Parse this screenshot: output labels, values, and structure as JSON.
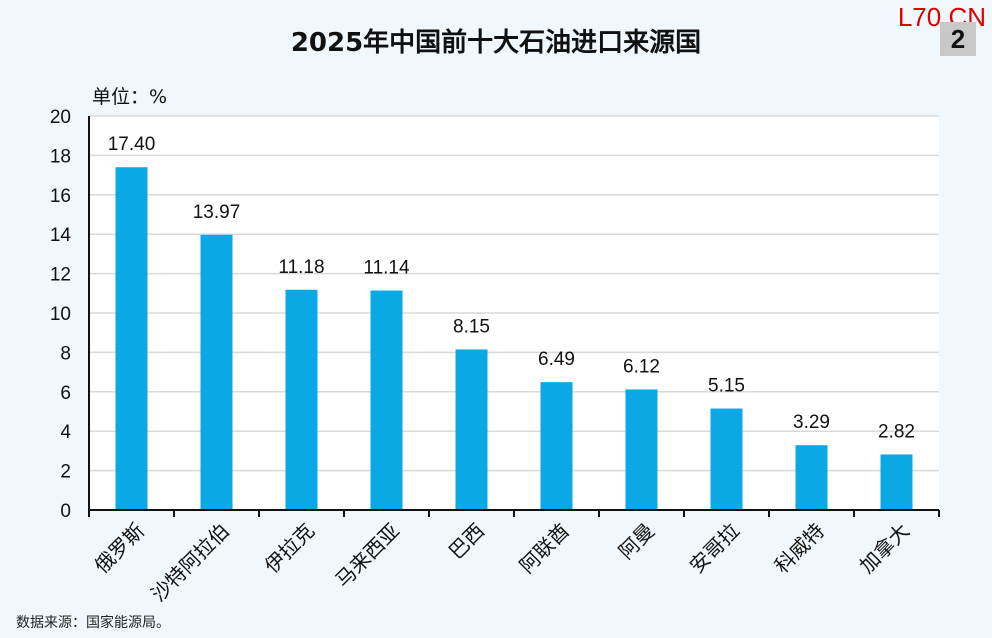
{
  "header": {
    "watermark": "L70.CN",
    "page_badge": "2"
  },
  "footer": {
    "source": "数据来源：国家能源局。"
  },
  "colors": {
    "bar": "#0aa8e4",
    "plot_bg": "#ffffff",
    "page_bg": "#f1f8fd",
    "grid": "#d9d9d9"
  },
  "chart_data": {
    "type": "bar",
    "title": "2025年中国前十大石油进口来源国",
    "unit_label": "单位：%",
    "xlabel": "",
    "ylabel": "",
    "ylim": [
      0,
      20
    ],
    "yticks": [
      0,
      2,
      4,
      6,
      8,
      10,
      12,
      14,
      16,
      18,
      20
    ],
    "grid": true,
    "categories": [
      "俄罗斯",
      "沙特阿拉伯",
      "伊拉克",
      "马来西亚",
      "巴西",
      "阿联酋",
      "阿曼",
      "安哥拉",
      "科威特",
      "加拿大"
    ],
    "values": [
      17.4,
      13.97,
      11.18,
      11.14,
      8.15,
      6.49,
      6.12,
      5.15,
      3.29,
      2.82
    ],
    "value_labels": [
      "17.40",
      "13.97",
      "11.18",
      "11.14",
      "8.15",
      "6.49",
      "6.12",
      "5.15",
      "3.29",
      "2.82"
    ]
  }
}
